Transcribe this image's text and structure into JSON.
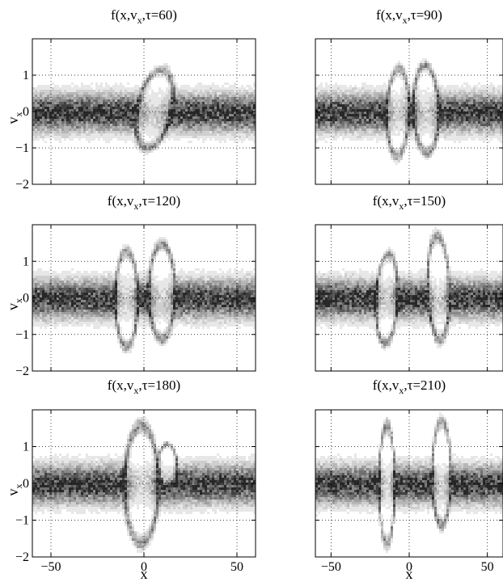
{
  "figure": {
    "panels": [
      {
        "title_base": "f(x,v",
        "title_sub": "x",
        "title_rest": ",τ=60)",
        "ylabel": "v",
        "ylabel_sub": "x",
        "xlabel": ""
      },
      {
        "title_base": "f(x,v",
        "title_sub": "x",
        "title_rest": ",τ=90)",
        "ylabel": "",
        "ylabel_sub": "",
        "xlabel": ""
      },
      {
        "title_base": "f(x,v",
        "title_sub": "x",
        "title_rest": ",τ=120)",
        "ylabel": "v",
        "ylabel_sub": "x",
        "xlabel": ""
      },
      {
        "title_base": "f(x,v",
        "title_sub": "x",
        "title_rest": ",τ=150)",
        "ylabel": "",
        "ylabel_sub": "",
        "xlabel": ""
      },
      {
        "title_base": "f(x,v",
        "title_sub": "x",
        "title_rest": ",τ=180)",
        "ylabel": "v",
        "ylabel_sub": "x",
        "xlabel": "x"
      },
      {
        "title_base": "f(x,v",
        "title_sub": "x",
        "title_rest": ",τ=210)",
        "ylabel": "",
        "ylabel_sub": "",
        "xlabel": "x"
      }
    ]
  },
  "chart_data": [
    {
      "type": "heatmap",
      "title": "f(x,v_x,τ=60)",
      "xlabel": "",
      "ylabel": "v_x",
      "xlim": [
        -60,
        60
      ],
      "ylim": [
        -2,
        2
      ],
      "xticks": [],
      "yticks": [
        1,
        0,
        -1,
        -2
      ],
      "grid": true,
      "colormap": "gray-inverted",
      "structure": "single tilted vortex centered at x≈5"
    },
    {
      "type": "heatmap",
      "title": "f(x,v_x,τ=90)",
      "xlabel": "",
      "ylabel": "",
      "xlim": [
        -60,
        60
      ],
      "ylim": [
        -2,
        2
      ],
      "xticks": [],
      "yticks": [],
      "grid": true,
      "colormap": "gray-inverted",
      "structure": "two adjacent holes at x≈-8 and x≈10"
    },
    {
      "type": "heatmap",
      "title": "f(x,v_x,τ=120)",
      "xlabel": "",
      "ylabel": "v_x",
      "xlim": [
        -60,
        60
      ],
      "ylim": [
        -2,
        2
      ],
      "xticks": [],
      "yticks": [
        1,
        0,
        -1,
        -2
      ],
      "grid": true,
      "colormap": "gray-inverted",
      "structure": "two holes at x≈-10 and x≈10"
    },
    {
      "type": "heatmap",
      "title": "f(x,v_x,τ=150)",
      "xlabel": "",
      "ylabel": "",
      "xlim": [
        -60,
        60
      ],
      "ylim": [
        -2,
        2
      ],
      "xticks": [],
      "yticks": [],
      "grid": true,
      "colormap": "gray-inverted",
      "structure": "two holes at x≈-15 and x≈20"
    },
    {
      "type": "heatmap",
      "title": "f(x,v_x,τ=180)",
      "xlabel": "x",
      "ylabel": "v_x",
      "xlim": [
        -60,
        60
      ],
      "ylim": [
        -2,
        2
      ],
      "xticks": [
        -50,
        0,
        50
      ],
      "yticks": [
        1,
        0,
        -1,
        -2
      ],
      "grid": true,
      "colormap": "gray-inverted",
      "structure": "large central hole at x≈0 with smaller hole at x≈10"
    },
    {
      "type": "heatmap",
      "title": "f(x,v_x,τ=210)",
      "xlabel": "x",
      "ylabel": "",
      "xlim": [
        -60,
        60
      ],
      "ylim": [
        -2,
        2
      ],
      "xticks": [
        -50,
        0,
        50
      ],
      "yticks": [],
      "grid": true,
      "colormap": "gray-inverted",
      "structure": "holes at x≈-15 and x≈20 with filament between"
    }
  ]
}
